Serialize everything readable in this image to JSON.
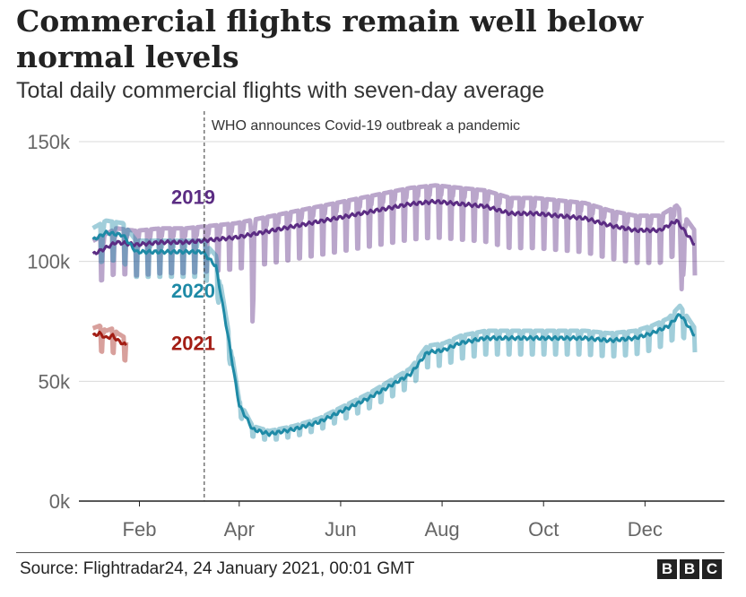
{
  "title": "Commercial flights remain well below normal levels",
  "subtitle": "Total daily commercial flights with seven-day average",
  "source": "Source: Flightradar24, 24 January 2021, 00:01 GMT",
  "logo": [
    "B",
    "B",
    "C"
  ],
  "colors": {
    "2019": "#5b2c83",
    "2020": "#1e8aa6",
    "2021": "#a31d14",
    "grid": "#d9d9d9",
    "axis": "#222222"
  },
  "chart_data": {
    "type": "line",
    "title": "Commercial flights remain well below normal levels",
    "subtitle": "Total daily commercial flights with seven-day average",
    "xlabel": "",
    "ylabel": "",
    "x_unit": "day of year",
    "xlim": [
      1,
      366
    ],
    "ylim": [
      0,
      150000
    ],
    "x_ticks": [
      {
        "day": 32,
        "label": "Feb"
      },
      {
        "day": 92,
        "label": "Apr"
      },
      {
        "day": 153,
        "label": "Jun"
      },
      {
        "day": 214,
        "label": "Aug"
      },
      {
        "day": 275,
        "label": "Oct"
      },
      {
        "day": 336,
        "label": "Dec"
      }
    ],
    "y_ticks": [
      {
        "value": 0,
        "label": "0k"
      },
      {
        "value": 50000,
        "label": "50k"
      },
      {
        "value": 100000,
        "label": "100k"
      },
      {
        "value": 150000,
        "label": "150k"
      }
    ],
    "grid": true,
    "annotation": {
      "day": 71,
      "text": "WHO announces Covid-19 outbreak a pandemic"
    },
    "series": [
      {
        "name": "2019",
        "color_key": "2019",
        "label_day": 38,
        "label_value": 124000,
        "weekly_dip": 12000,
        "dips": [
          [
            100,
            23000
          ],
          [
            358,
            32000
          ]
        ],
        "average": [
          [
            4,
            103000
          ],
          [
            10,
            105000
          ],
          [
            18,
            108000
          ],
          [
            30,
            107000
          ],
          [
            45,
            108000
          ],
          [
            60,
            108000
          ],
          [
            75,
            109000
          ],
          [
            90,
            110000
          ],
          [
            105,
            112000
          ],
          [
            120,
            114000
          ],
          [
            135,
            116000
          ],
          [
            150,
            118000
          ],
          [
            165,
            120000
          ],
          [
            180,
            122000
          ],
          [
            195,
            124000
          ],
          [
            210,
            125000
          ],
          [
            225,
            124000
          ],
          [
            240,
            123000
          ],
          [
            255,
            120000
          ],
          [
            270,
            120000
          ],
          [
            285,
            119000
          ],
          [
            300,
            118000
          ],
          [
            315,
            115000
          ],
          [
            330,
            113000
          ],
          [
            345,
            113000
          ],
          [
            355,
            117000
          ],
          [
            366,
            107000
          ]
        ]
      },
      {
        "name": "2020",
        "color_key": "2020",
        "label_day": 38,
        "label_value": 85000,
        "weekly_dip": 10000,
        "dips": [],
        "average": [
          [
            4,
            109000
          ],
          [
            12,
            112000
          ],
          [
            22,
            111000
          ],
          [
            30,
            104000
          ],
          [
            45,
            104000
          ],
          [
            60,
            104000
          ],
          [
            70,
            104000
          ],
          [
            78,
            98000
          ],
          [
            85,
            70000
          ],
          [
            92,
            40000
          ],
          [
            100,
            30000
          ],
          [
            110,
            28000
          ],
          [
            125,
            30000
          ],
          [
            140,
            33000
          ],
          [
            155,
            38000
          ],
          [
            170,
            43000
          ],
          [
            185,
            49000
          ],
          [
            195,
            53000
          ],
          [
            205,
            62000
          ],
          [
            215,
            63000
          ],
          [
            225,
            66000
          ],
          [
            240,
            68000
          ],
          [
            255,
            68000
          ],
          [
            270,
            68000
          ],
          [
            285,
            68000
          ],
          [
            300,
            68000
          ],
          [
            315,
            67000
          ],
          [
            330,
            68000
          ],
          [
            340,
            70000
          ],
          [
            350,
            73000
          ],
          [
            357,
            78000
          ],
          [
            366,
            69000
          ]
        ]
      },
      {
        "name": "2021",
        "color_key": "2021",
        "label_day": 38,
        "label_value": 63000,
        "weekly_dip": 10000,
        "dips": [],
        "average": [
          [
            4,
            69000
          ],
          [
            8,
            70000
          ],
          [
            12,
            68000
          ],
          [
            16,
            69000
          ],
          [
            19,
            67000
          ],
          [
            24,
            65000
          ]
        ]
      }
    ]
  }
}
